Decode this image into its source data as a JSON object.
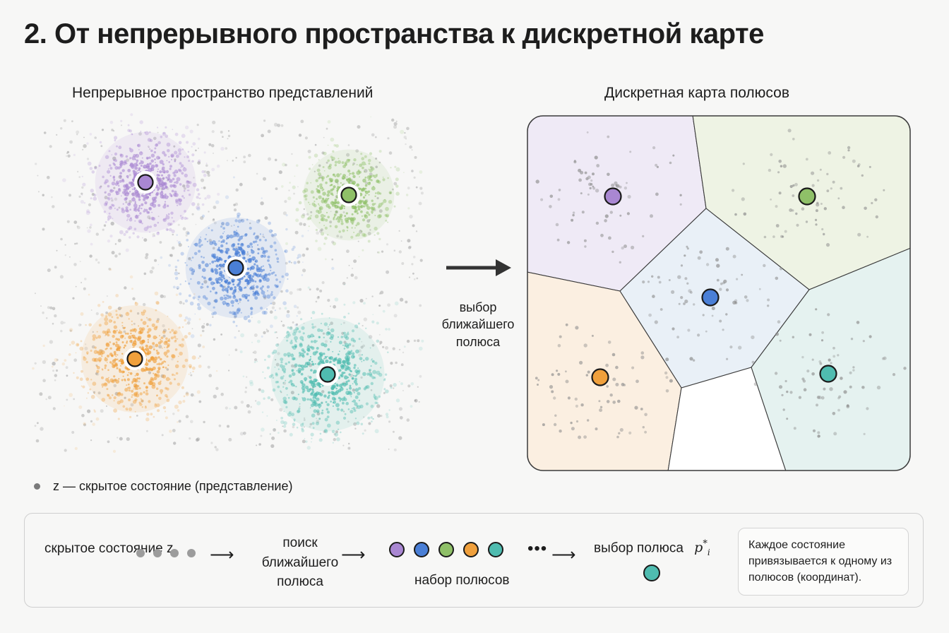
{
  "title": "2. От непрерывного пространства к дискретной карте",
  "left_panel": {
    "title": "Непрерывное пространство представлений"
  },
  "right_panel": {
    "title": "Дискретная карта полюсов"
  },
  "arrow_label": "выбор ближайшего полюса",
  "legend": {
    "text": "z — скрытое состояние (представление)"
  },
  "colors": {
    "purple": "#a987d2",
    "green": "#8fc068",
    "blue": "#4a7fd6",
    "orange": "#f0a03c",
    "teal": "#4fbcb0",
    "background_points": "#9a9a9a"
  },
  "clusters": [
    {
      "name": "purple",
      "color": "#a987d2"
    },
    {
      "name": "green",
      "color": "#8fc068"
    },
    {
      "name": "blue",
      "color": "#4a7fd6"
    },
    {
      "name": "orange",
      "color": "#f0a03c"
    },
    {
      "name": "teal",
      "color": "#4fbcb0"
    }
  ],
  "voronoi_cells": [
    {
      "pole": "purple",
      "fill": "#efeaf6"
    },
    {
      "pole": "green",
      "fill": "#eef3e4"
    },
    {
      "pole": "blue",
      "fill": "#e9f0f7"
    },
    {
      "pole": "orange",
      "fill": "#fbefe1"
    },
    {
      "pole": "teal",
      "fill": "#e5f2f0"
    },
    {
      "pole": "none",
      "fill": "#ffffff"
    }
  ],
  "pipeline": {
    "latent_label": "скрытое состояние z",
    "arrow_glyph": "⟶",
    "search_label": "поиск ближайшего полюса",
    "pole_set_label": "набор полюсов",
    "pole_set_colors": [
      "#a987d2",
      "#4a7fd6",
      "#8fc068",
      "#f0a03c",
      "#4fbcb0"
    ],
    "ellipsis": "•••",
    "select_label": "выбор полюса",
    "select_symbol": "p",
    "select_superscript": "*",
    "select_subscript": "i",
    "chosen_color": "#4fbcb0",
    "note": "Каждое состояние привязывается к одному из полюсов (координат)."
  }
}
